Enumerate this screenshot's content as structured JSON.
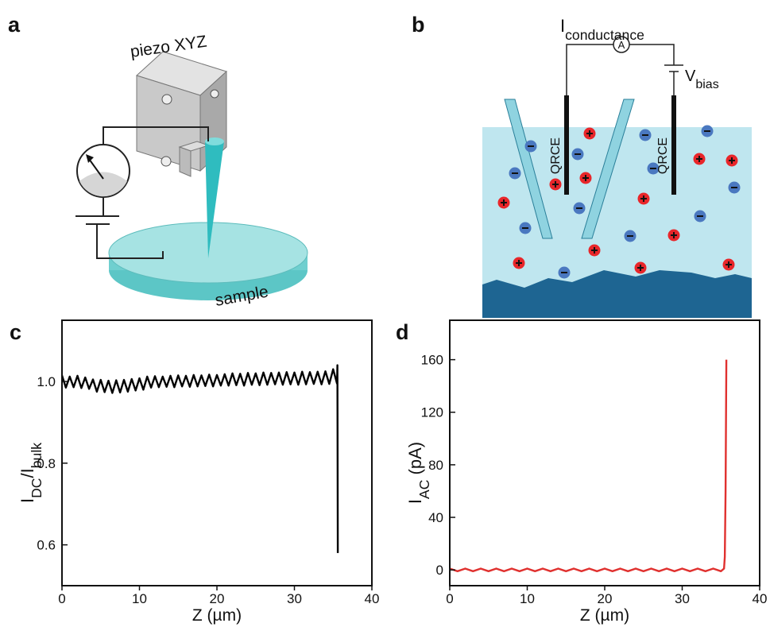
{
  "panels": {
    "a": {
      "label": "a",
      "piezo": "piezo XYZ",
      "sample": "sample"
    },
    "b": {
      "label": "b",
      "current": [
        {
          "text": "I"
        },
        {
          "text": "conductance",
          "sub": true
        }
      ],
      "ammeter": "A",
      "bias": [
        {
          "text": "V"
        },
        {
          "text": "bias",
          "sub": true
        }
      ],
      "electrodes": [
        "QRCE",
        "QRCE"
      ]
    }
  },
  "chart_data": [
    {
      "type": "line",
      "panel": "c",
      "color": "#000000",
      "xlabel": "Z (µm)",
      "ylabel": [
        {
          "text": "I"
        },
        {
          "text": "DC",
          "sub": true
        },
        {
          "text": "/I"
        },
        {
          "text": "bulk",
          "sub": true
        }
      ],
      "xlim": [
        0,
        40
      ],
      "xticks": [
        0,
        10,
        20,
        30,
        40
      ],
      "ylim": [
        0.5,
        1.15
      ],
      "yticks": [
        0.6,
        0.8,
        {
          "value": 1,
          "label": "1.0"
        }
      ],
      "x": [
        0,
        0.5,
        1,
        1.5,
        2,
        2.5,
        3,
        3.5,
        4,
        4.5,
        5,
        5.5,
        6,
        6.5,
        7,
        7.5,
        8,
        8.5,
        9,
        9.5,
        10,
        10.5,
        11,
        11.5,
        12,
        12.5,
        13,
        13.5,
        14,
        14.5,
        15,
        15.5,
        16,
        16.5,
        17,
        17.5,
        18,
        18.5,
        19,
        19.5,
        20,
        20.5,
        21,
        21.5,
        22,
        22.5,
        23,
        23.5,
        24,
        24.5,
        25,
        25.5,
        26,
        26.5,
        27,
        27.5,
        28,
        28.5,
        29,
        29.5,
        30,
        30.5,
        31,
        31.5,
        32,
        32.5,
        33,
        33.5,
        34,
        34.5,
        35,
        35.5,
        35.55,
        35.6
      ],
      "values": [
        1.015,
        0.985,
        1.012,
        0.986,
        1.014,
        0.984,
        1.01,
        0.982,
        1.005,
        0.975,
        1.004,
        0.974,
        1.002,
        0.972,
        1.003,
        0.973,
        1.004,
        0.975,
        1.006,
        0.978,
        1.008,
        0.98,
        1.012,
        0.985,
        1.013,
        0.986,
        1.012,
        0.987,
        1.014,
        0.986,
        1.015,
        0.988,
        1.014,
        0.987,
        1.016,
        0.988,
        1.015,
        0.989,
        1.017,
        0.988,
        1.016,
        0.99,
        1.018,
        0.99,
        1.02,
        0.991,
        1.019,
        0.99,
        1.021,
        0.992,
        1.02,
        0.991,
        1.022,
        0.992,
        1.021,
        0.993,
        1.022,
        0.992,
        1.023,
        0.993,
        1.022,
        0.992,
        1.024,
        0.993,
        1.023,
        0.994,
        1.024,
        0.993,
        1.025,
        0.994,
        1.03,
        0.995,
        1.04,
        0.58
      ]
    },
    {
      "type": "line",
      "panel": "d",
      "color": "#e0312f",
      "xlabel": "Z (µm)",
      "ylabel": [
        {
          "text": "I"
        },
        {
          "text": "AC",
          "sub": true
        },
        {
          "text": " (pA)"
        }
      ],
      "xlim": [
        0,
        40
      ],
      "xticks": [
        0,
        10,
        20,
        30,
        40
      ],
      "ylim": [
        -12,
        190
      ],
      "yticks": [
        0,
        40,
        80,
        120,
        160
      ],
      "x": [
        0,
        1,
        2,
        3,
        4,
        5,
        6,
        7,
        8,
        9,
        10,
        11,
        12,
        13,
        14,
        15,
        16,
        17,
        18,
        19,
        20,
        21,
        22,
        23,
        24,
        25,
        26,
        27,
        28,
        29,
        30,
        31,
        32,
        33,
        34,
        35,
        35.4,
        35.5,
        35.6,
        35.7
      ],
      "values": [
        1,
        -1,
        1,
        -1,
        1,
        -1,
        1,
        -1,
        1,
        -1,
        1,
        -1,
        1,
        -1,
        1,
        -1,
        1,
        -1,
        1,
        -1,
        1,
        -1,
        1,
        -1,
        1,
        -1,
        1,
        -1,
        1,
        -1,
        1,
        -1,
        1,
        -1,
        1,
        -1,
        1,
        10,
        60,
        160
      ]
    }
  ]
}
